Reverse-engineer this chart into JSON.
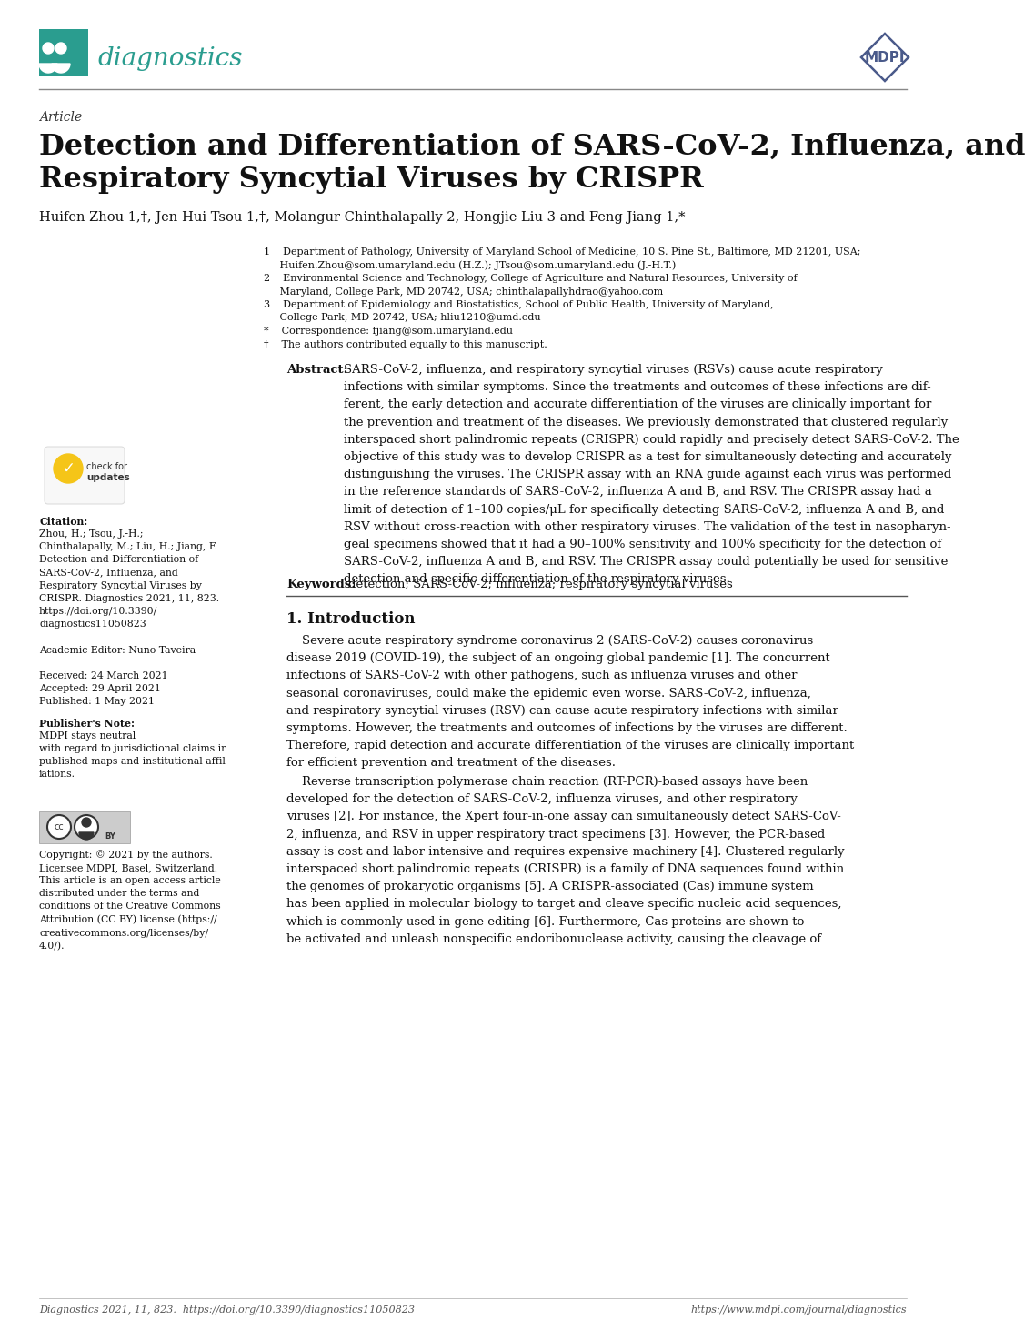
{
  "page_bg": "#ffffff",
  "header": {
    "journal_name": "diagnostics",
    "journal_color": "#2a9d8f",
    "journal_box_color": "#2a9d8f",
    "mdpi_color": "#4a5a8a",
    "separator_color": "#888888"
  },
  "article_label": "Article",
  "title_line1": "Detection and Differentiation of SARS-CoV-2, Influenza, and",
  "title_line2": "Respiratory Syncytial Viruses by CRISPR",
  "authors": "Huifen Zhou 1,†, Jen-Hui Tsou 1,†, Molangur Chinthalapally 2, Hongjie Liu 3 and Feng Jiang 1,*",
  "aff1": "1    Department of Pathology, University of Maryland School of Medicine, 10 S. Pine St., Baltimore, MD 21201, USA;",
  "aff1b": "     Huifen.Zhou@som.umaryland.edu (H.Z.); JTsou@som.umaryland.edu (J.-H.T.)",
  "aff2": "2    Environmental Science and Technology, College of Agriculture and Natural Resources, University of",
  "aff2b": "     Maryland, College Park, MD 20742, USA; chinthalapallyhdrao@yahoo.com",
  "aff3": "3    Department of Epidemiology and Biostatistics, School of Public Health, University of Maryland,",
  "aff3b": "     College Park, MD 20742, USA; hliu1210@umd.edu",
  "aff4": "*    Correspondence: fjiang@som.umaryland.edu",
  "aff5": "†    The authors contributed equally to this manuscript.",
  "abstract_text": "SARS-CoV-2, influenza, and respiratory syncytial viruses (RSVs) cause acute respiratory\ninfections with similar symptoms. Since the treatments and outcomes of these infections are dif-\nferent, the early detection and accurate differentiation of the viruses are clinically important for\nthe prevention and treatment of the diseases. We previously demonstrated that clustered regularly\ninterspaced short palindromic repeats (CRISPR) could rapidly and precisely detect SARS-CoV-2. The\nobjective of this study was to develop CRISPR as a test for simultaneously detecting and accurately\ndistinguishing the viruses. The CRISPR assay with an RNA guide against each virus was performed\nin the reference standards of SARS-CoV-2, influenza A and B, and RSV. The CRISPR assay had a\nlimit of detection of 1–100 copies/μL for specifically detecting SARS-CoV-2, influenza A and B, and\nRSV without cross-reaction with other respiratory viruses. The validation of the test in nasopharyn-\ngeal specimens showed that it had a 90–100% sensitivity and 100% specificity for the detection of\nSARS-CoV-2, influenza A and B, and RSV. The CRISPR assay could potentially be used for sensitive\ndetection and specific differentiation of the respiratory viruses.",
  "keywords_text": "detection; SARS-CoV-2; influenza; respiratory syncytial viruses",
  "sidebar_citation_lines": "Zhou, H.; Tsou, J.-H.;\nChinthalapally, M.; Liu, H.; Jiang, F.\nDetection and Differentiation of\nSARS-CoV-2, Influenza, and\nRespiratory Syncytial Viruses by\nCRISPR. Diagnostics 2021, 11, 823.\nhttps://doi.org/10.3390/\ndiagnostics11050823",
  "sidebar_editor": "Academic Editor: Nuno Taveira",
  "sidebar_received": "Received: 24 March 2021",
  "sidebar_accepted": "Accepted: 29 April 2021",
  "sidebar_published": "Published: 1 May 2021",
  "sidebar_publisher_body": "MDPI stays neutral\nwith regard to jurisdictional claims in\npublished maps and institutional affil-\niations.",
  "sidebar_copyright_body": "Copyright: © 2021 by the authors.\nLicensee MDPI, Basel, Switzerland.\nThis article is an open access article\ndistributed under the terms and\nconditions of the Creative Commons\nAttribution (CC BY) license (https://\ncreativecommons.org/licenses/by/\n4.0/).",
  "intro_title": "1. Introduction",
  "intro_para1": "    Severe acute respiratory syndrome coronavirus 2 (SARS-CoV-2) causes coronavirus\ndisease 2019 (COVID-19), the subject of an ongoing global pandemic [1]. The concurrent\ninfections of SARS-CoV-2 with other pathogens, such as influenza viruses and other\nseasonal coronaviruses, could make the epidemic even worse. SARS-CoV-2, influenza,\nand respiratory syncytial viruses (RSV) can cause acute respiratory infections with similar\nsymptoms. However, the treatments and outcomes of infections by the viruses are different.\nTherefore, rapid detection and accurate differentiation of the viruses are clinically important\nfor efficient prevention and treatment of the diseases.",
  "intro_para2": "    Reverse transcription polymerase chain reaction (RT-PCR)-based assays have been\ndeveloped for the detection of SARS-CoV-2, influenza viruses, and other respiratory\nviruses [2]. For instance, the Xpert four-in-one assay can simultaneously detect SARS-CoV-\n2, influenza, and RSV in upper respiratory tract specimens [3]. However, the PCR-based\nassay is cost and labor intensive and requires expensive machinery [4]. Clustered regularly\ninterspaced short palindromic repeats (CRISPR) is a family of DNA sequences found within\nthe genomes of prokaryotic organisms [5]. A CRISPR-associated (Cas) immune system\nhas been applied in molecular biology to target and cleave specific nucleic acid sequences,\nwhich is commonly used in gene editing [6]. Furthermore, Cas proteins are shown to\nbe activated and unleash nonspecific endoribonuclease activity, causing the cleavage of",
  "footer_left": "Diagnostics 2021, 11, 823.  https://doi.org/10.3390/diagnostics11050823",
  "footer_right": "https://www.mdpi.com/journal/diagnostics"
}
